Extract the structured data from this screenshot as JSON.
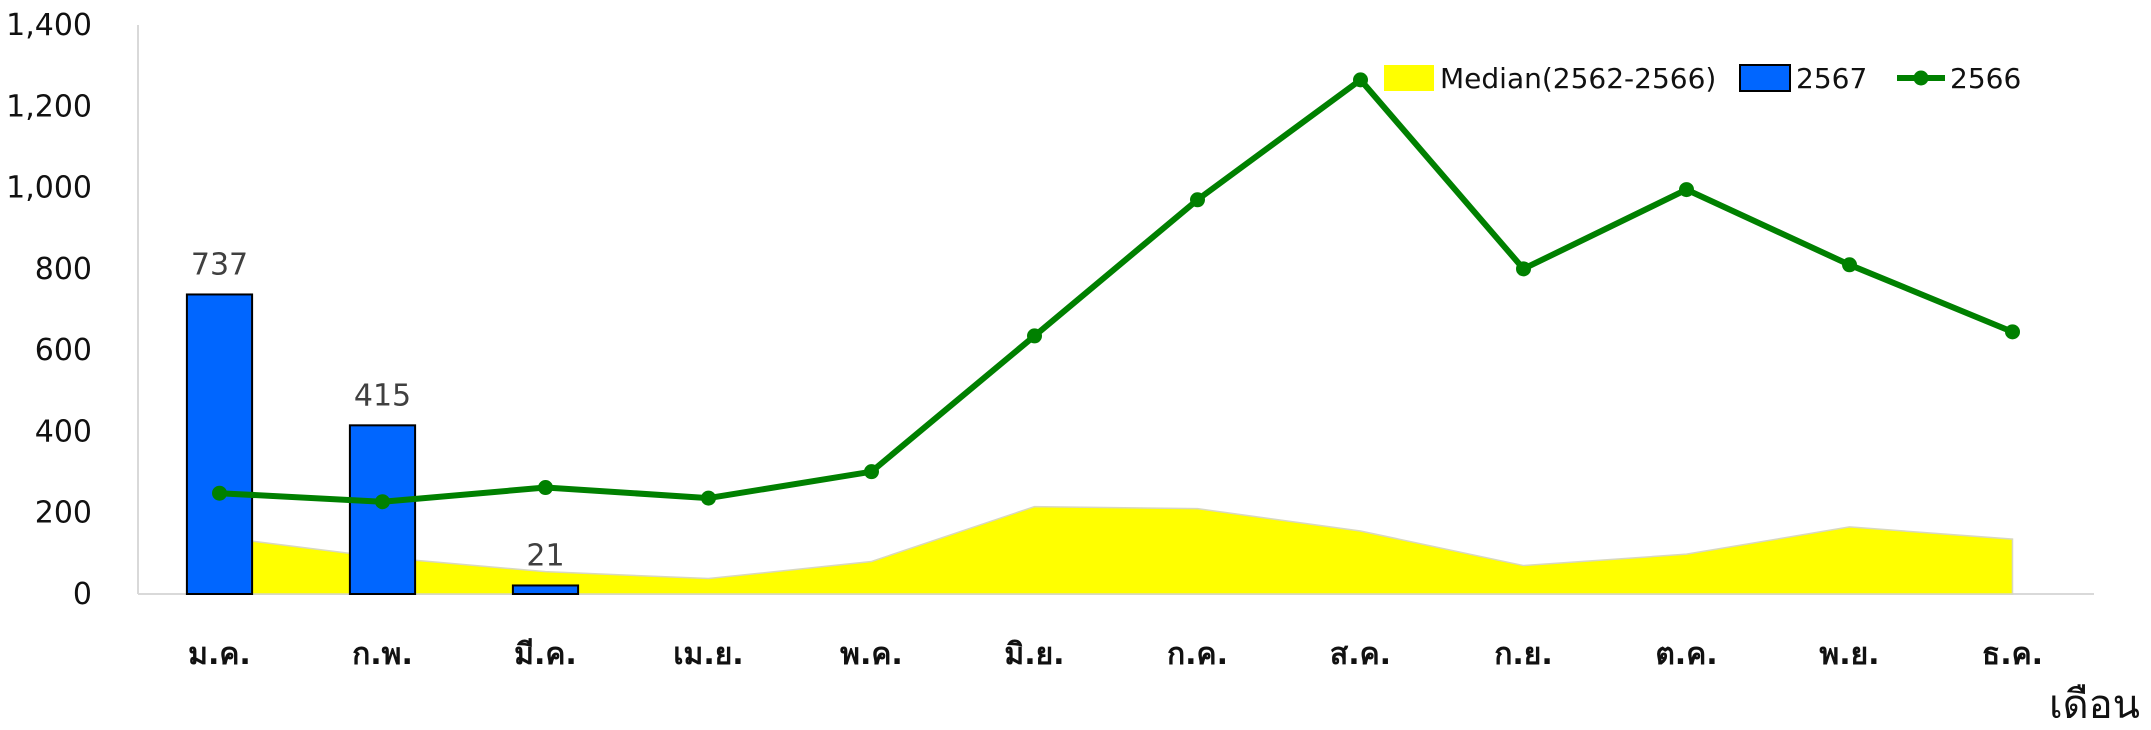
{
  "chart_data": {
    "type": "bar",
    "title": "",
    "xlabel": "เดือน",
    "ylabel": "",
    "ylim": [
      0,
      1400
    ],
    "yticks": [
      0,
      200,
      400,
      600,
      800,
      1000,
      1200,
      1400
    ],
    "ytick_labels": [
      "0",
      "200",
      "400",
      "600",
      "800",
      "1,000",
      "1,200",
      "1,400"
    ],
    "categories": [
      "ม.ค.",
      "ก.พ.",
      "มี.ค.",
      "เม.ย.",
      "พ.ค.",
      "มิ.ย.",
      "ก.ค.",
      "ส.ค.",
      "ก.ย.",
      "ต.ค.",
      "พ.ย.",
      "ธ.ค."
    ],
    "grid": false,
    "legend_position": "top-right",
    "series": [
      {
        "name": "Median(2562-2566)",
        "type": "area",
        "color": "#ffff00",
        "values": [
          140,
          90,
          55,
          38,
          80,
          215,
          210,
          155,
          70,
          98,
          165,
          135
        ]
      },
      {
        "name": "2567",
        "type": "bar",
        "color": "#0066ff",
        "values": [
          737,
          415,
          21,
          null,
          null,
          null,
          null,
          null,
          null,
          null,
          null,
          null
        ],
        "data_labels": [
          "737",
          "415",
          "21"
        ]
      },
      {
        "name": "2566",
        "type": "line",
        "color": "#008000",
        "values": [
          248,
          227,
          262,
          236,
          301,
          635,
          970,
          1265,
          800,
          995,
          810,
          645
        ]
      }
    ]
  }
}
